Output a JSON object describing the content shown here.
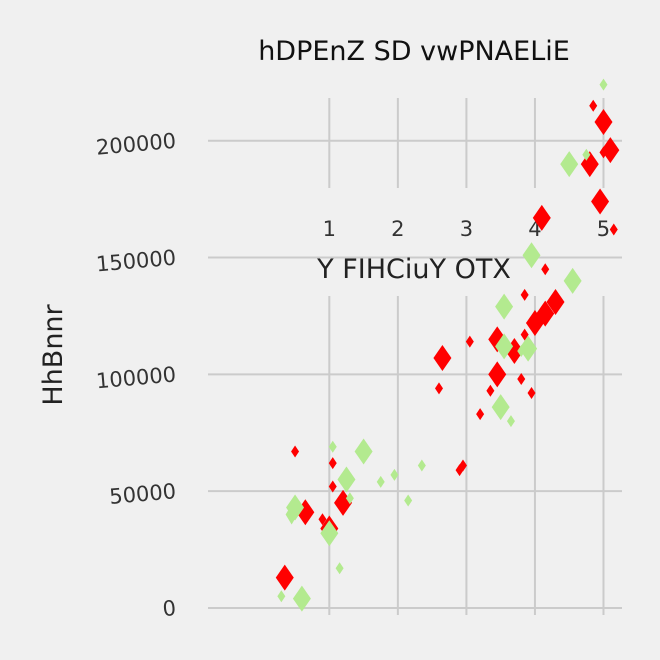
{
  "chart_data": {
    "type": "scatter",
    "title": "hDPEnZ SD vwPNAELiE",
    "xlabel": "Y FIHCiuY OTX",
    "ylabel": "HhBnnr",
    "xlim": [
      -0.77,
      5.27
    ],
    "ylim": [
      -3000,
      226000
    ],
    "x_ticks": [
      1,
      2,
      3,
      4,
      5
    ],
    "y_ticks": [
      0,
      50000,
      100000,
      150000,
      200000
    ],
    "x_tick_labels": [
      "1",
      "2",
      "3",
      "4",
      "5"
    ],
    "y_tick_labels": [
      "0",
      "50000",
      "100000",
      "150000",
      "200000"
    ],
    "grid": true,
    "colors": {
      "series_a": "#ff0000",
      "series_b": "#b3ea8f"
    },
    "series": [
      {
        "color": "#ff0000",
        "points": [
          {
            "x": 0.35,
            "y": 13000,
            "s": 3
          },
          {
            "x": 0.5,
            "y": 67000,
            "s": 1
          },
          {
            "x": 0.65,
            "y": 41000,
            "s": 3
          },
          {
            "x": 0.9,
            "y": 38000,
            "s": 1
          },
          {
            "x": 1.0,
            "y": 34000,
            "s": 3
          },
          {
            "x": 1.05,
            "y": 62000,
            "s": 1
          },
          {
            "x": 1.05,
            "y": 52000,
            "s": 1
          },
          {
            "x": 1.2,
            "y": 45000,
            "s": 3
          },
          {
            "x": 2.9,
            "y": 59000,
            "s": 1
          },
          {
            "x": 2.95,
            "y": 61000,
            "s": 1
          },
          {
            "x": 3.2,
            "y": 83000,
            "s": 1
          },
          {
            "x": 3.35,
            "y": 93000,
            "s": 1
          },
          {
            "x": 3.45,
            "y": 100000,
            "s": 3
          },
          {
            "x": 3.45,
            "y": 115000,
            "s": 3
          },
          {
            "x": 3.55,
            "y": 114000,
            "s": 1
          },
          {
            "x": 3.7,
            "y": 110000,
            "s": 3
          },
          {
            "x": 3.8,
            "y": 98000,
            "s": 1
          },
          {
            "x": 3.85,
            "y": 117000,
            "s": 1
          },
          {
            "x": 3.85,
            "y": 134000,
            "s": 1
          },
          {
            "x": 3.95,
            "y": 92000,
            "s": 1
          },
          {
            "x": 4.0,
            "y": 122000,
            "s": 3
          },
          {
            "x": 4.1,
            "y": 167000,
            "s": 3
          },
          {
            "x": 4.15,
            "y": 126000,
            "s": 3
          },
          {
            "x": 4.15,
            "y": 145000,
            "s": 1
          },
          {
            "x": 4.3,
            "y": 131000,
            "s": 3
          },
          {
            "x": 4.8,
            "y": 190000,
            "s": 3
          },
          {
            "x": 4.85,
            "y": 215000,
            "s": 1
          },
          {
            "x": 4.95,
            "y": 174000,
            "s": 3
          },
          {
            "x": 5.0,
            "y": 208000,
            "s": 3
          },
          {
            "x": 5.0,
            "y": 195000,
            "s": 1
          },
          {
            "x": 5.1,
            "y": 196000,
            "s": 3
          },
          {
            "x": 5.15,
            "y": 162000,
            "s": 1
          },
          {
            "x": 2.65,
            "y": 107000,
            "s": 3
          },
          {
            "x": 2.6,
            "y": 94000,
            "s": 1
          },
          {
            "x": 3.05,
            "y": 114000,
            "s": 1
          }
        ]
      },
      {
        "color": "#b3ea8f",
        "points": [
          {
            "x": 0.3,
            "y": 5000,
            "s": 1
          },
          {
            "x": 0.45,
            "y": 40000,
            "s": 2
          },
          {
            "x": 0.5,
            "y": 43000,
            "s": 3
          },
          {
            "x": 0.6,
            "y": 4000,
            "s": 3
          },
          {
            "x": 1.0,
            "y": 32000,
            "s": 3
          },
          {
            "x": 1.05,
            "y": 69000,
            "s": 1
          },
          {
            "x": 1.15,
            "y": 17000,
            "s": 1
          },
          {
            "x": 1.25,
            "y": 55000,
            "s": 3
          },
          {
            "x": 1.3,
            "y": 47000,
            "s": 1
          },
          {
            "x": 1.5,
            "y": 67000,
            "s": 3
          },
          {
            "x": 1.75,
            "y": 54000,
            "s": 1
          },
          {
            "x": 1.95,
            "y": 57000,
            "s": 1
          },
          {
            "x": 2.15,
            "y": 46000,
            "s": 1
          },
          {
            "x": 2.35,
            "y": 61000,
            "s": 1
          },
          {
            "x": 3.5,
            "y": 86000,
            "s": 3
          },
          {
            "x": 3.55,
            "y": 112000,
            "s": 3
          },
          {
            "x": 3.55,
            "y": 129000,
            "s": 3
          },
          {
            "x": 3.65,
            "y": 80000,
            "s": 1
          },
          {
            "x": 3.8,
            "y": 110000,
            "s": 1
          },
          {
            "x": 3.9,
            "y": 111000,
            "s": 3
          },
          {
            "x": 3.95,
            "y": 151000,
            "s": 3
          },
          {
            "x": 4.5,
            "y": 190000,
            "s": 3
          },
          {
            "x": 4.55,
            "y": 140000,
            "s": 3
          },
          {
            "x": 4.55,
            "y": 138000,
            "s": 1
          },
          {
            "x": 4.75,
            "y": 194000,
            "s": 1
          },
          {
            "x": 5.0,
            "y": 224000,
            "s": 1
          }
        ]
      }
    ]
  }
}
